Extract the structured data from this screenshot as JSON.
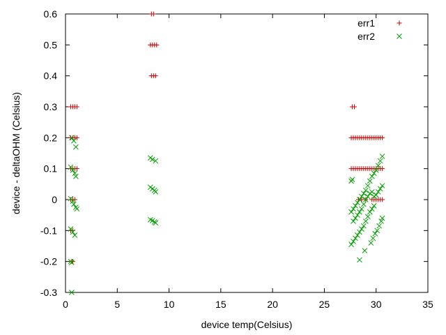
{
  "chart_data": {
    "type": "scatter",
    "xlabel": "device temp(Celsius)",
    "ylabel": "device - deltaOHM (Celsius)",
    "xlim": [
      0,
      35
    ],
    "ylim": [
      -0.3,
      0.6
    ],
    "xticks": [
      0,
      5,
      10,
      15,
      20,
      25,
      30,
      35
    ],
    "yticks": [
      -0.3,
      -0.2,
      -0.1,
      0,
      0.1,
      0.2,
      0.3,
      0.4,
      0.5,
      0.6
    ],
    "xtick_labels": [
      "0",
      "5",
      "10",
      "15",
      "20",
      "25",
      "30",
      "35"
    ],
    "ytick_labels": [
      "-0.3",
      "-0.2",
      "-0.1",
      "0",
      "0.1",
      "0.2",
      "0.3",
      "0.4",
      "0.5",
      "0.6"
    ],
    "grid": false,
    "legend_position": "top-right",
    "series": [
      {
        "name": "err1",
        "marker": "plus",
        "color": "#cc0000",
        "points": [
          [
            0.5,
            0.3
          ],
          [
            0.7,
            0.3
          ],
          [
            0.9,
            0.3
          ],
          [
            1.1,
            0.3
          ],
          [
            0.5,
            0.2
          ],
          [
            0.7,
            0.2
          ],
          [
            0.9,
            0.2
          ],
          [
            1.1,
            0.2
          ],
          [
            0.5,
            0.1
          ],
          [
            0.7,
            0.1
          ],
          [
            0.9,
            0.1
          ],
          [
            1.1,
            0.1
          ],
          [
            0.5,
            0.0
          ],
          [
            0.7,
            0.0
          ],
          [
            0.9,
            0.0
          ],
          [
            0.5,
            -0.1
          ],
          [
            0.7,
            -0.1
          ],
          [
            0.6,
            -0.2
          ],
          [
            0.7,
            -0.2
          ],
          [
            8.3,
            0.6
          ],
          [
            8.5,
            0.6
          ],
          [
            8.2,
            0.5
          ],
          [
            8.4,
            0.5
          ],
          [
            8.6,
            0.5
          ],
          [
            8.8,
            0.5
          ],
          [
            8.3,
            0.4
          ],
          [
            8.5,
            0.4
          ],
          [
            8.7,
            0.4
          ],
          [
            27.7,
            0.3
          ],
          [
            27.9,
            0.3
          ],
          [
            27.6,
            0.2
          ],
          [
            27.8,
            0.2
          ],
          [
            28.0,
            0.2
          ],
          [
            28.2,
            0.2
          ],
          [
            28.4,
            0.2
          ],
          [
            28.6,
            0.2
          ],
          [
            28.8,
            0.2
          ],
          [
            29.0,
            0.2
          ],
          [
            29.2,
            0.2
          ],
          [
            29.4,
            0.2
          ],
          [
            29.6,
            0.2
          ],
          [
            29.8,
            0.2
          ],
          [
            30.0,
            0.2
          ],
          [
            30.2,
            0.2
          ],
          [
            30.4,
            0.2
          ],
          [
            30.6,
            0.2
          ],
          [
            27.6,
            0.1
          ],
          [
            27.8,
            0.1
          ],
          [
            28.0,
            0.1
          ],
          [
            28.2,
            0.1
          ],
          [
            28.4,
            0.1
          ],
          [
            28.6,
            0.1
          ],
          [
            28.8,
            0.1
          ],
          [
            29.0,
            0.1
          ],
          [
            29.2,
            0.1
          ],
          [
            29.4,
            0.1
          ],
          [
            29.6,
            0.1
          ],
          [
            29.8,
            0.1
          ],
          [
            30.0,
            0.1
          ],
          [
            30.2,
            0.1
          ],
          [
            30.4,
            0.1
          ],
          [
            30.6,
            0.1
          ],
          [
            28.3,
            0.0
          ],
          [
            28.6,
            0.0
          ],
          [
            29.0,
            0.0
          ],
          [
            29.6,
            0.0
          ],
          [
            29.8,
            0.0
          ],
          [
            30.0,
            0.0
          ],
          [
            30.2,
            0.0
          ],
          [
            30.4,
            0.0
          ],
          [
            30.6,
            0.0
          ]
        ]
      },
      {
        "name": "err2",
        "marker": "cross",
        "color": "#00a000",
        "points": [
          [
            0.5,
            0.105
          ],
          [
            0.7,
            0.095
          ],
          [
            0.9,
            0.085
          ],
          [
            1.0,
            0.075
          ],
          [
            0.6,
            0.2
          ],
          [
            0.8,
            0.19
          ],
          [
            1.0,
            0.17
          ],
          [
            0.5,
            0.003
          ],
          [
            0.7,
            -0.005
          ],
          [
            0.8,
            -0.015
          ],
          [
            1.0,
            -0.025
          ],
          [
            1.1,
            -0.03
          ],
          [
            0.5,
            -0.095
          ],
          [
            0.7,
            -0.105
          ],
          [
            0.9,
            -0.115
          ],
          [
            0.5,
            -0.2
          ],
          [
            0.6,
            -0.203
          ],
          [
            0.6,
            -0.3
          ],
          [
            8.2,
            0.135
          ],
          [
            8.4,
            0.13
          ],
          [
            8.7,
            0.125
          ],
          [
            8.2,
            0.04
          ],
          [
            8.4,
            0.035
          ],
          [
            8.6,
            0.03
          ],
          [
            8.7,
            0.025
          ],
          [
            8.2,
            -0.065
          ],
          [
            8.4,
            -0.068
          ],
          [
            8.6,
            -0.072
          ],
          [
            8.7,
            -0.075
          ],
          [
            27.6,
            0.06
          ],
          [
            27.7,
            0.065
          ],
          [
            27.6,
            -0.04
          ],
          [
            27.8,
            -0.03
          ],
          [
            28.0,
            -0.02
          ],
          [
            28.2,
            -0.01
          ],
          [
            28.4,
            0.0
          ],
          [
            28.6,
            0.01
          ],
          [
            28.8,
            0.02
          ],
          [
            29.0,
            0.03
          ],
          [
            29.2,
            0.045
          ],
          [
            29.4,
            0.06
          ],
          [
            29.6,
            0.075
          ],
          [
            29.8,
            0.085
          ],
          [
            30.0,
            0.095
          ],
          [
            30.2,
            0.11
          ],
          [
            30.4,
            0.125
          ],
          [
            30.6,
            0.14
          ],
          [
            27.8,
            -0.07
          ],
          [
            28.0,
            -0.06
          ],
          [
            28.2,
            -0.05
          ],
          [
            28.4,
            -0.04
          ],
          [
            28.6,
            -0.03
          ],
          [
            28.8,
            -0.015
          ],
          [
            29.0,
            0.0
          ],
          [
            29.2,
            0.01
          ],
          [
            29.4,
            0.02
          ],
          [
            29.6,
            0.025
          ],
          [
            29.8,
            0.01
          ],
          [
            30.0,
            0.015
          ],
          [
            30.2,
            0.025
          ],
          [
            30.4,
            0.035
          ],
          [
            30.6,
            0.045
          ],
          [
            27.6,
            -0.145
          ],
          [
            27.8,
            -0.135
          ],
          [
            28.0,
            -0.125
          ],
          [
            28.2,
            -0.115
          ],
          [
            28.4,
            -0.105
          ],
          [
            28.6,
            -0.095
          ],
          [
            28.8,
            -0.085
          ],
          [
            29.0,
            -0.07
          ],
          [
            29.2,
            -0.055
          ],
          [
            29.4,
            -0.04
          ],
          [
            29.6,
            -0.03
          ],
          [
            29.8,
            -0.02
          ],
          [
            29.5,
            -0.14
          ],
          [
            29.7,
            -0.125
          ],
          [
            29.9,
            -0.11
          ],
          [
            30.1,
            -0.1
          ],
          [
            30.3,
            -0.085
          ],
          [
            30.5,
            -0.07
          ],
          [
            30.6,
            -0.06
          ],
          [
            28.4,
            -0.195
          ],
          [
            28.9,
            -0.165
          ]
        ]
      }
    ]
  }
}
